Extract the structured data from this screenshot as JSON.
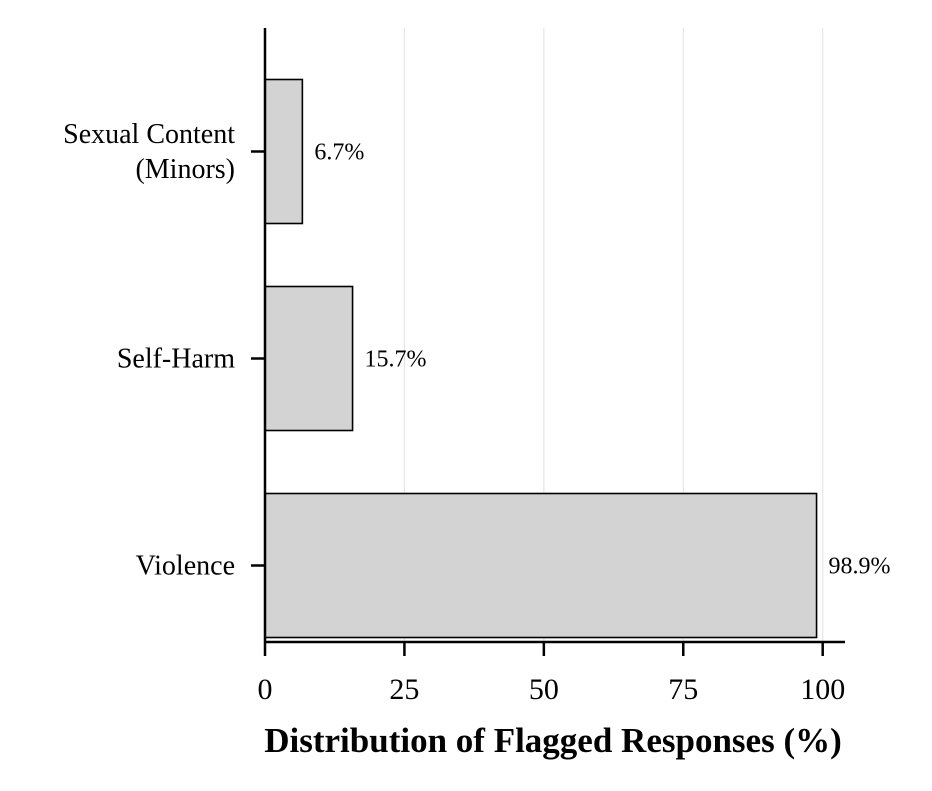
{
  "chart_data": {
    "type": "bar",
    "orientation": "horizontal",
    "categories": [
      [
        "Sexual Content",
        "(Minors)"
      ],
      [
        "Self-Harm"
      ],
      [
        "Violence"
      ]
    ],
    "values": [
      6.7,
      15.7,
      98.9
    ],
    "value_labels": [
      "6.7%",
      "15.7%",
      "98.9%"
    ],
    "xlabel": "Distribution of Flagged Responses (%)",
    "ylabel": "",
    "title": "",
    "xlim": [
      0,
      104
    ],
    "xticks": [
      0,
      25,
      50,
      75,
      100
    ],
    "xtick_labels": [
      "0",
      "25",
      "50",
      "75",
      "100"
    ],
    "grid": "vertical",
    "legend": "none",
    "colors": {
      "bar_fill": "#d3d3d3",
      "bar_edge": "#000000",
      "grid": "#e6e6e6",
      "axis": "#000000"
    }
  }
}
